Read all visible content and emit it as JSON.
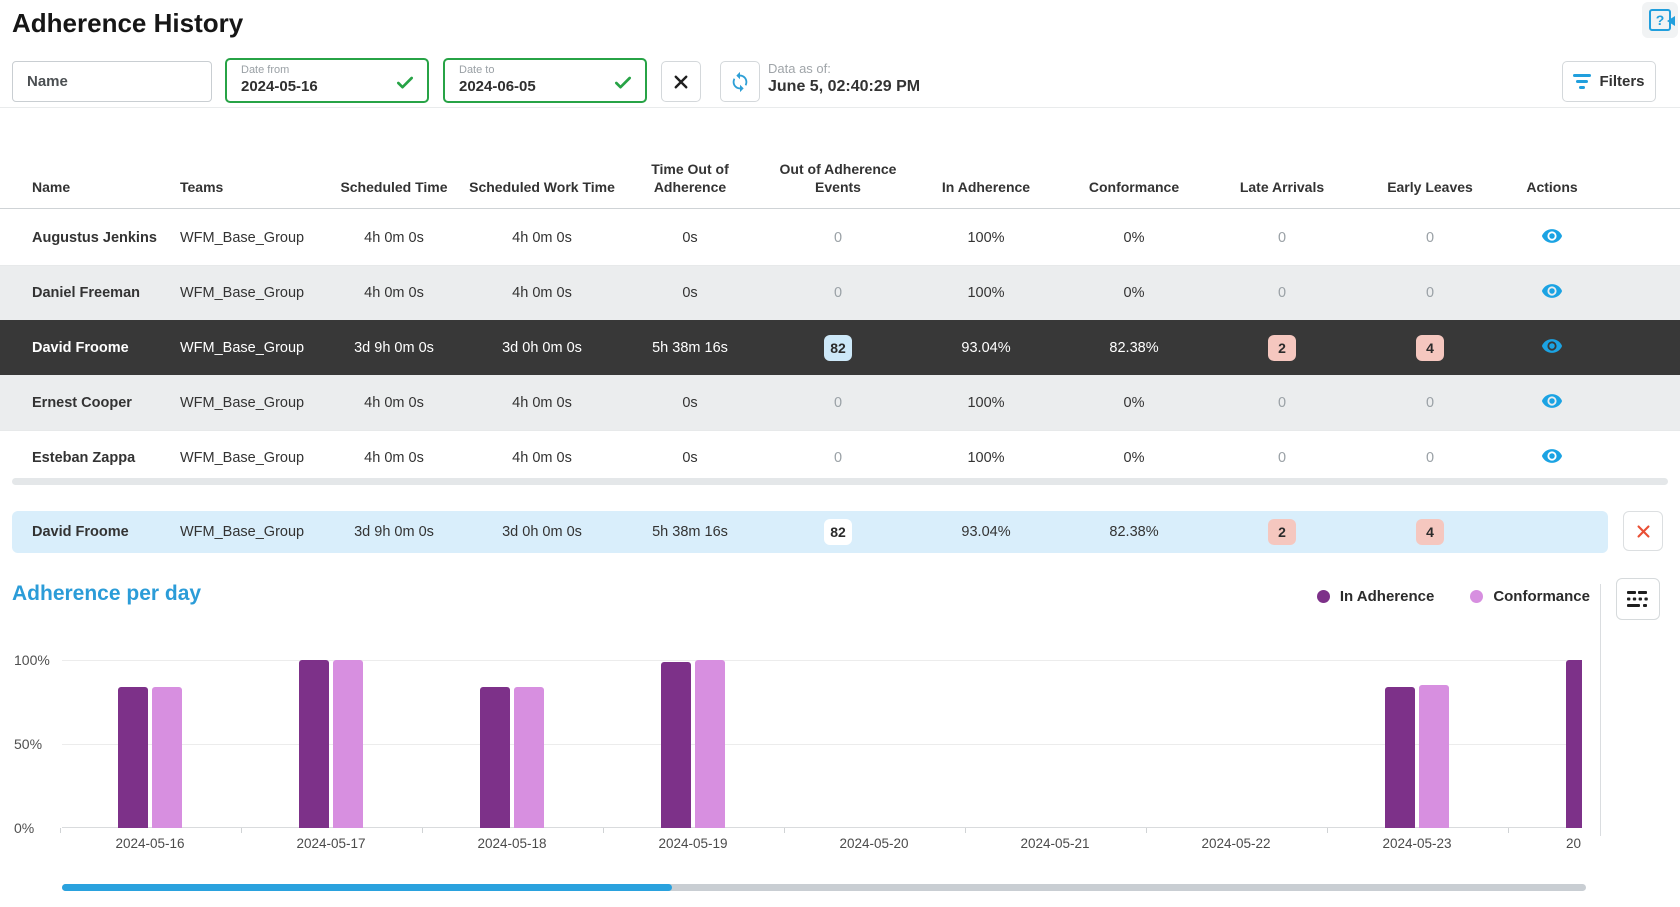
{
  "page": {
    "title": "Adherence History"
  },
  "filters_bar": {
    "name_input": {
      "placeholder": "Name"
    },
    "date_from": {
      "label": "Date from",
      "value": "2024-05-16"
    },
    "date_to": {
      "label": "Date to",
      "value": "2024-06-05"
    },
    "data_as_of_label": "Data as of:",
    "data_as_of_value": "June 5, 02:40:29 PM",
    "filters_button_label": "Filters"
  },
  "table": {
    "columns": [
      "Name",
      "Teams",
      "Scheduled Time",
      "Scheduled Work Time",
      "Time Out of Adherence",
      "Out of Adherence Events",
      "In Adherence",
      "Conformance",
      "Late Arrivals",
      "Early Leaves",
      "Actions"
    ],
    "rows": [
      {
        "name": "Augustus Jenkins",
        "team": "WFM_Base_Group",
        "scheduled_time": "4h 0m 0s",
        "scheduled_work_time": "4h 0m 0s",
        "time_out_of_adherence": "0s",
        "out_of_adherence_events": "0",
        "in_adherence": "100%",
        "conformance": "0%",
        "late_arrivals": "0",
        "early_leaves": "0",
        "selected": false
      },
      {
        "name": "Daniel Freeman",
        "team": "WFM_Base_Group",
        "scheduled_time": "4h 0m 0s",
        "scheduled_work_time": "4h 0m 0s",
        "time_out_of_adherence": "0s",
        "out_of_adherence_events": "0",
        "in_adherence": "100%",
        "conformance": "0%",
        "late_arrivals": "0",
        "early_leaves": "0",
        "selected": false
      },
      {
        "name": "David Froome",
        "team": "WFM_Base_Group",
        "scheduled_time": "3d 9h 0m 0s",
        "scheduled_work_time": "3d 0h 0m 0s",
        "time_out_of_adherence": "5h 38m 16s",
        "out_of_adherence_events": "82",
        "in_adherence": "93.04%",
        "conformance": "82.38%",
        "late_arrivals": "2",
        "early_leaves": "4",
        "selected": true
      },
      {
        "name": "Ernest Cooper",
        "team": "WFM_Base_Group",
        "scheduled_time": "4h 0m 0s",
        "scheduled_work_time": "4h 0m 0s",
        "time_out_of_adherence": "0s",
        "out_of_adherence_events": "0",
        "in_adherence": "100%",
        "conformance": "0%",
        "late_arrivals": "0",
        "early_leaves": "0",
        "selected": false
      },
      {
        "name": "Esteban Zappa",
        "team": "WFM_Base_Group",
        "scheduled_time": "4h 0m 0s",
        "scheduled_work_time": "4h 0m 0s",
        "time_out_of_adherence": "0s",
        "out_of_adherence_events": "0",
        "in_adherence": "100%",
        "conformance": "0%",
        "late_arrivals": "0",
        "early_leaves": "0",
        "selected": false
      }
    ]
  },
  "selected_detail": {
    "name": "David Froome",
    "team": "WFM_Base_Group",
    "scheduled_time": "3d 9h 0m 0s",
    "scheduled_work_time": "3d 0h 0m 0s",
    "time_out_of_adherence": "5h 38m 16s",
    "out_of_adherence_events": "82",
    "in_adherence": "93.04%",
    "conformance": "82.38%",
    "late_arrivals": "2",
    "early_leaves": "4"
  },
  "chart": {
    "heading": "Adherence per day"
  },
  "chart_data": {
    "type": "bar",
    "title": "Adherence per day",
    "categories": [
      "2024-05-16",
      "2024-05-17",
      "2024-05-18",
      "2024-05-19",
      "2024-05-20",
      "2024-05-21",
      "2024-05-22",
      "2024-05-23",
      "20"
    ],
    "series": [
      {
        "name": "In Adherence",
        "color": "#7d3189",
        "values": [
          84,
          100,
          84,
          99,
          0,
          0,
          0,
          84,
          100
        ]
      },
      {
        "name": "Conformance",
        "color": "#d78fe0",
        "values": [
          84,
          100,
          84,
          100,
          0,
          0,
          0,
          85,
          null
        ]
      }
    ],
    "xlabel": "",
    "ylabel": "",
    "yticks": [
      "0%",
      "50%",
      "100%"
    ],
    "ylim": [
      0,
      100
    ],
    "grid": true,
    "legend_position": "top-right",
    "last_bar_partial": true
  },
  "colors": {
    "accent_blue": "#219fdd",
    "green": "#27a346",
    "dark_purple": "#7d3189",
    "light_purple": "#d78fe0",
    "selected_row_bg": "#383838",
    "badge_pink": "#f5c7bf",
    "badge_blue": "#cde8f8",
    "detail_bar_bg": "#d9eefb",
    "close_red": "#e94f35"
  }
}
